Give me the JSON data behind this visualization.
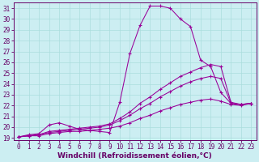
{
  "xlabel": "Windchill (Refroidissement éolien,°C)",
  "xlim": [
    -0.5,
    23.5
  ],
  "ylim": [
    18.8,
    31.5
  ],
  "yticks": [
    19,
    20,
    21,
    22,
    23,
    24,
    25,
    26,
    27,
    28,
    29,
    30,
    31
  ],
  "xticks": [
    0,
    1,
    2,
    3,
    4,
    5,
    6,
    7,
    8,
    9,
    10,
    11,
    12,
    13,
    14,
    15,
    16,
    17,
    18,
    19,
    20,
    21,
    22,
    23
  ],
  "bg_color": "#cceef2",
  "grid_color": "#aadddd",
  "line_color": "#990099",
  "lines": [
    {
      "x": [
        0,
        1,
        2,
        3,
        4,
        5,
        6,
        7,
        8,
        9,
        10,
        11,
        12,
        13,
        14,
        15,
        16,
        17,
        18,
        19,
        20,
        21,
        22,
        23
      ],
      "y": [
        19.1,
        19.3,
        19.4,
        20.2,
        20.4,
        20.1,
        19.8,
        19.7,
        19.6,
        19.5,
        22.3,
        26.8,
        29.4,
        31.2,
        31.2,
        31.0,
        30.0,
        29.3,
        26.2,
        25.6,
        23.2,
        22.2,
        22.1,
        22.2
      ]
    },
    {
      "x": [
        0,
        1,
        2,
        3,
        4,
        5,
        6,
        7,
        8,
        9,
        10,
        11,
        12,
        13,
        14,
        15,
        16,
        17,
        18,
        19,
        20,
        21,
        22,
        23
      ],
      "y": [
        19.1,
        19.2,
        19.3,
        19.6,
        19.7,
        19.8,
        19.9,
        20.0,
        20.1,
        20.3,
        20.8,
        21.4,
        22.2,
        22.8,
        23.5,
        24.1,
        24.7,
        25.1,
        25.5,
        25.8,
        25.6,
        22.3,
        22.1,
        22.2
      ]
    },
    {
      "x": [
        0,
        1,
        2,
        3,
        4,
        5,
        6,
        7,
        8,
        9,
        10,
        11,
        12,
        13,
        14,
        15,
        16,
        17,
        18,
        19,
        20,
        21,
        22,
        23
      ],
      "y": [
        19.1,
        19.2,
        19.3,
        19.5,
        19.6,
        19.7,
        19.8,
        19.9,
        20.0,
        20.2,
        20.6,
        21.1,
        21.7,
        22.2,
        22.8,
        23.3,
        23.8,
        24.2,
        24.5,
        24.7,
        24.5,
        22.2,
        22.1,
        22.2
      ]
    },
    {
      "x": [
        0,
        1,
        2,
        3,
        4,
        5,
        6,
        7,
        8,
        9,
        10,
        11,
        12,
        13,
        14,
        15,
        16,
        17,
        18,
        19,
        20,
        21,
        22,
        23
      ],
      "y": [
        19.1,
        19.2,
        19.2,
        19.4,
        19.5,
        19.6,
        19.6,
        19.7,
        19.8,
        19.9,
        20.1,
        20.4,
        20.8,
        21.1,
        21.5,
        21.8,
        22.1,
        22.3,
        22.5,
        22.6,
        22.4,
        22.1,
        22.0,
        22.2
      ]
    }
  ],
  "font_color": "#660066",
  "tick_fontsize": 5.5,
  "label_fontsize": 6.5
}
